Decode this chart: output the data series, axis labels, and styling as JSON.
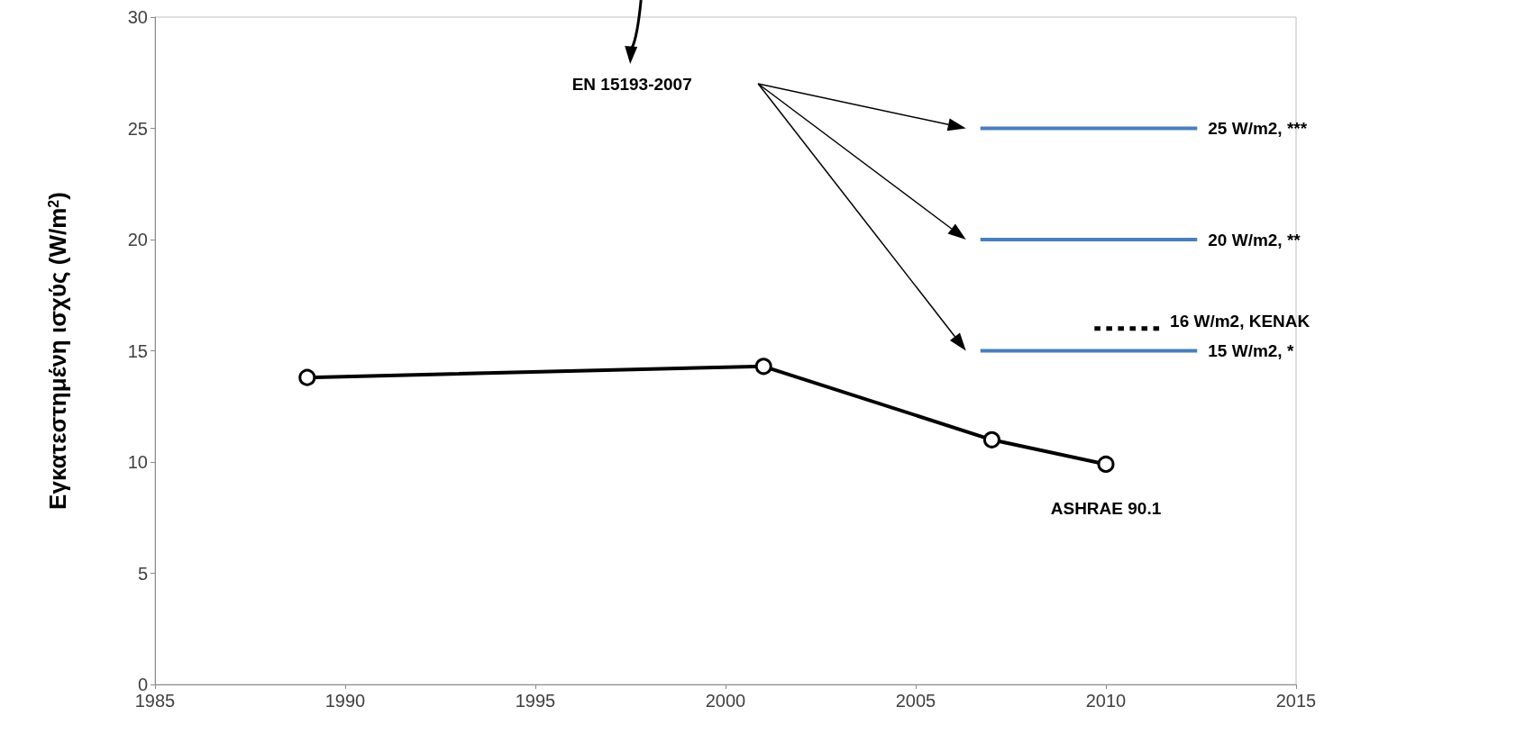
{
  "chart_data": {
    "type": "line",
    "ylabel": "Εγκατεστημένη ισχύς (W/m$^{2}$)",
    "xlim": [
      1985,
      2015
    ],
    "xticks": [
      1985,
      1990,
      1995,
      2000,
      2005,
      2010,
      2015
    ],
    "ylim": [
      0,
      30
    ],
    "yticks": [
      0,
      5,
      10,
      15,
      20,
      25,
      30
    ],
    "grid": false,
    "legend": false,
    "series": [
      {
        "name": "ASHRAE 90.1",
        "color": "#000000",
        "x": [
          1989,
          2001,
          2007,
          2010
        ],
        "values": [
          13.8,
          14.3,
          11.0,
          9.9
        ],
        "marker": "circle",
        "line_style": "solid"
      },
      {
        "name": "25 W/m2, ***",
        "color": "#4a7ebb",
        "x": [
          2006.7,
          2012.4
        ],
        "values": [
          25,
          25
        ],
        "marker": "none",
        "line_style": "solid"
      },
      {
        "name": "20 W/m2, **",
        "color": "#4a7ebb",
        "x": [
          2006.7,
          2012.4
        ],
        "values": [
          20,
          20
        ],
        "marker": "none",
        "line_style": "solid"
      },
      {
        "name": "15 W/m2, *",
        "color": "#4a7ebb",
        "x": [
          2006.7,
          2012.4
        ],
        "values": [
          15,
          15
        ],
        "marker": "none",
        "line_style": "solid"
      },
      {
        "name": "16 W/m2, KENAK",
        "color": "#000000",
        "x": [
          2009.7,
          2011.4
        ],
        "values": [
          16,
          16
        ],
        "marker": "none",
        "line_style": "dotted"
      }
    ],
    "annotations": [
      "EN 15193-2007"
    ]
  }
}
